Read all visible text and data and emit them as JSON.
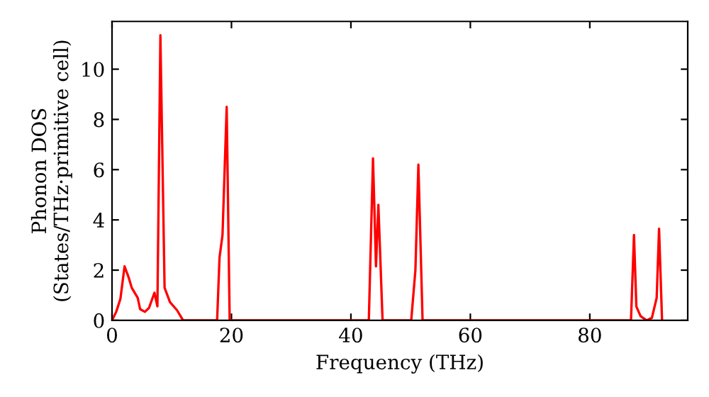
{
  "chart_data": {
    "type": "line",
    "xlabel": "Frequency (THz)",
    "ylabel": "Phonon DOS\n(States/THz·primitive cell)",
    "xlim": [
      0,
      96.4
    ],
    "ylim": [
      0,
      11.9
    ],
    "xticks": [
      0,
      20,
      40,
      60,
      80
    ],
    "yticks": [
      0,
      2,
      4,
      6,
      8,
      10
    ],
    "grid": false,
    "legend": false,
    "series": [
      {
        "color": "#ff0000",
        "x": [
          0,
          0.7,
          1.4,
          2.1,
          2.8,
          3.3,
          4.3,
          4.7,
          5.5,
          6.2,
          7.1,
          7.6,
          8.1,
          8.8,
          9.7,
          10.9,
          11.9,
          17.6,
          18.0,
          18.5,
          19.2,
          19.7,
          43.0,
          43.7,
          44.2,
          44.6,
          45.3,
          50.1,
          50.8,
          51.3,
          52.0,
          86.9,
          87.4,
          87.8,
          88.5,
          89.5,
          90.4,
          91.2,
          91.6,
          92.1
        ],
        "values": [
          0,
          0.34,
          0.85,
          2.15,
          1.7,
          1.3,
          0.9,
          0.45,
          0.34,
          0.5,
          1.1,
          0.56,
          11.35,
          1.3,
          0.73,
          0.4,
          0,
          0,
          2.5,
          3.4,
          8.5,
          0,
          0,
          6.45,
          2.15,
          4.6,
          0,
          0,
          2.0,
          6.2,
          0,
          0,
          3.4,
          0.55,
          0.17,
          0,
          0.1,
          0.9,
          3.65,
          0
        ]
      }
    ]
  }
}
